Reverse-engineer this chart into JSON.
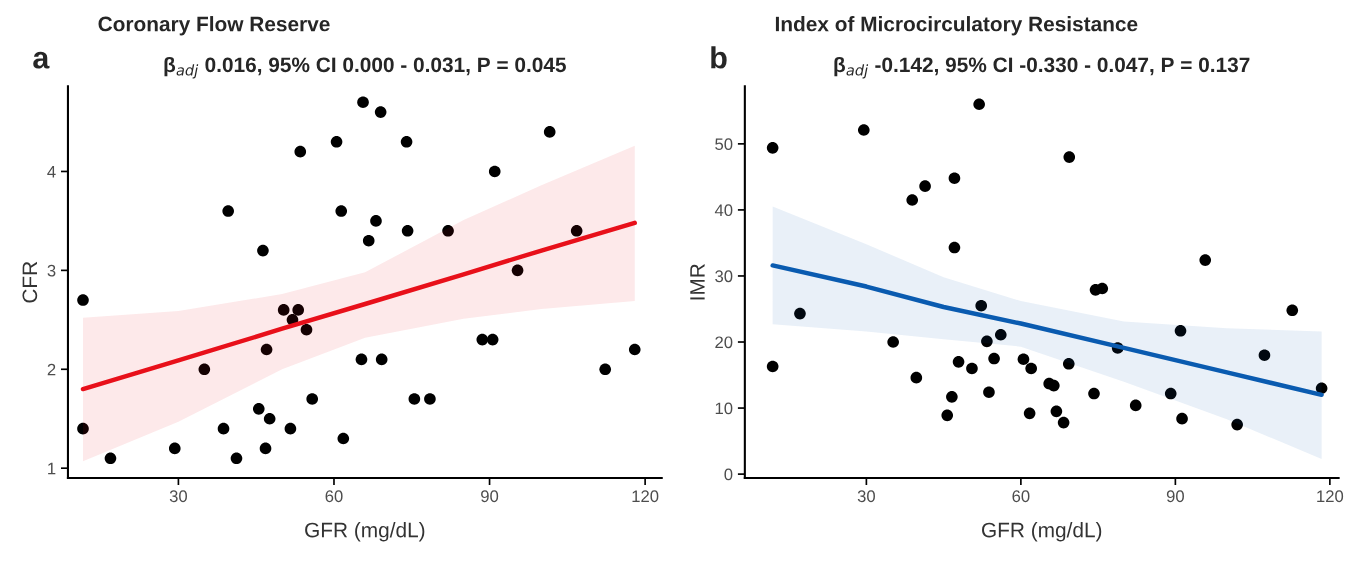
{
  "chart_data": [
    {
      "type": "scatter",
      "title": "Coronary Flow Reserve",
      "subtitle": "β$_{adj}$ 0.016, 95% CI 0.000 - 0.031, P = 0.045",
      "xlabel": "GFR (mg/dL)",
      "ylabel": "CFR",
      "annotations": [
        "a"
      ],
      "xlim": [
        8.7,
        123.2
      ],
      "ylim": [
        0.9,
        4.86
      ],
      "xticks": [
        30,
        60,
        90,
        120
      ],
      "yticks": [
        1,
        2,
        3,
        4
      ],
      "grid": false,
      "series": [
        {
          "marker": "circle",
          "color": "#000000",
          "x": [
            11.6,
            11.6,
            16.9,
            29.3,
            35.0,
            39.6,
            38.7,
            41.2,
            45.5,
            46.3,
            46.8,
            47.0,
            47.6,
            50.3,
            53.1,
            52.0,
            54.7,
            51.6,
            53.5,
            55.8,
            60.5,
            61.4,
            61.8,
            65.6,
            65.3,
            69.0,
            74.0,
            68.1,
            66.7,
            74.2,
            82.0,
            91.0,
            101.6,
            106.8,
            95.4,
            88.6,
            90.6,
            69.2,
            75.5,
            78.5,
            112.3,
            118.0
          ],
          "values": [
            2.7,
            1.4,
            1.1,
            1.2,
            2.0,
            3.6,
            1.4,
            1.1,
            1.6,
            3.2,
            1.2,
            2.2,
            1.5,
            2.6,
            2.6,
            2.5,
            2.4,
            1.4,
            4.2,
            1.7,
            4.3,
            3.6,
            1.3,
            4.7,
            2.1,
            4.6,
            4.3,
            3.5,
            3.3,
            3.4,
            3.4,
            4.0,
            4.4,
            3.4,
            3.0,
            2.3,
            2.3,
            2.1,
            1.7,
            1.7,
            2.0,
            2.2
          ]
        },
        {
          "type": "line",
          "color": "#e8101a",
          "x": [
            11.6,
            30,
            50,
            66,
            85,
            100,
            118
          ],
          "values": [
            1.8,
            2.09,
            2.41,
            2.66,
            2.96,
            3.2,
            3.48
          ],
          "lower": [
            1.07,
            1.47,
            2.0,
            2.32,
            2.51,
            2.61,
            2.69
          ],
          "upper": [
            2.52,
            2.59,
            2.76,
            2.98,
            3.51,
            3.86,
            4.26
          ]
        }
      ]
    },
    {
      "type": "scatter",
      "title": "Index of Microcirculatory Resistance",
      "subtitle": "β$_{adj}$ -0.142, 95% CI -0.330 - 0.047, P = 0.137",
      "xlabel": "GFR (mg/dL)",
      "ylabel": "IMR",
      "annotations": [
        "b"
      ],
      "xlim": [
        6.4,
        121.7
      ],
      "ylim": [
        -0.6,
        58.7
      ],
      "xticks": [
        30,
        60,
        90,
        120
      ],
      "yticks": [
        0,
        10,
        20,
        30,
        40,
        50
      ],
      "grid": false,
      "series": [
        {
          "marker": "circle",
          "color": "#000000",
          "x": [
            11.8,
            11.8,
            17.1,
            29.5,
            35.2,
            38.9,
            41.4,
            39.7,
            47.1,
            47.1,
            45.7,
            46.6,
            47.9,
            50.5,
            51.9,
            52.3,
            53.4,
            56.1,
            54.8,
            53.8,
            60.5,
            62.0,
            61.7,
            69.4,
            69.3,
            65.5,
            66.4,
            66.9,
            68.3,
            74.2,
            74.5,
            75.8,
            78.8,
            82.3,
            89.1,
            91.0,
            91.3,
            95.8,
            102.0,
            107.3,
            112.7,
            118.4
          ],
          "values": [
            49.4,
            16.3,
            24.3,
            52.1,
            20.0,
            41.5,
            43.6,
            14.6,
            44.8,
            34.3,
            8.9,
            11.7,
            17.0,
            16.0,
            56.0,
            25.5,
            20.1,
            21.1,
            17.5,
            12.4,
            17.4,
            16.0,
            9.2,
            48.0,
            16.7,
            13.7,
            13.4,
            9.5,
            7.8,
            12.2,
            27.9,
            28.1,
            19.1,
            10.4,
            12.2,
            21.7,
            8.4,
            32.4,
            7.5,
            18.0,
            24.8,
            13.0
          ]
        },
        {
          "type": "line",
          "color": "#0a5bb0",
          "x": [
            11.8,
            30,
            45,
            60,
            80,
            100,
            118.4
          ],
          "values": [
            31.6,
            28.4,
            25.3,
            22.8,
            19.1,
            15.4,
            12.0
          ],
          "lower": [
            22.7,
            21.6,
            20.4,
            19.3,
            14.0,
            8.3,
            2.3
          ],
          "upper": [
            40.5,
            34.8,
            29.8,
            26.2,
            23.1,
            22.1,
            21.6
          ]
        }
      ]
    }
  ]
}
